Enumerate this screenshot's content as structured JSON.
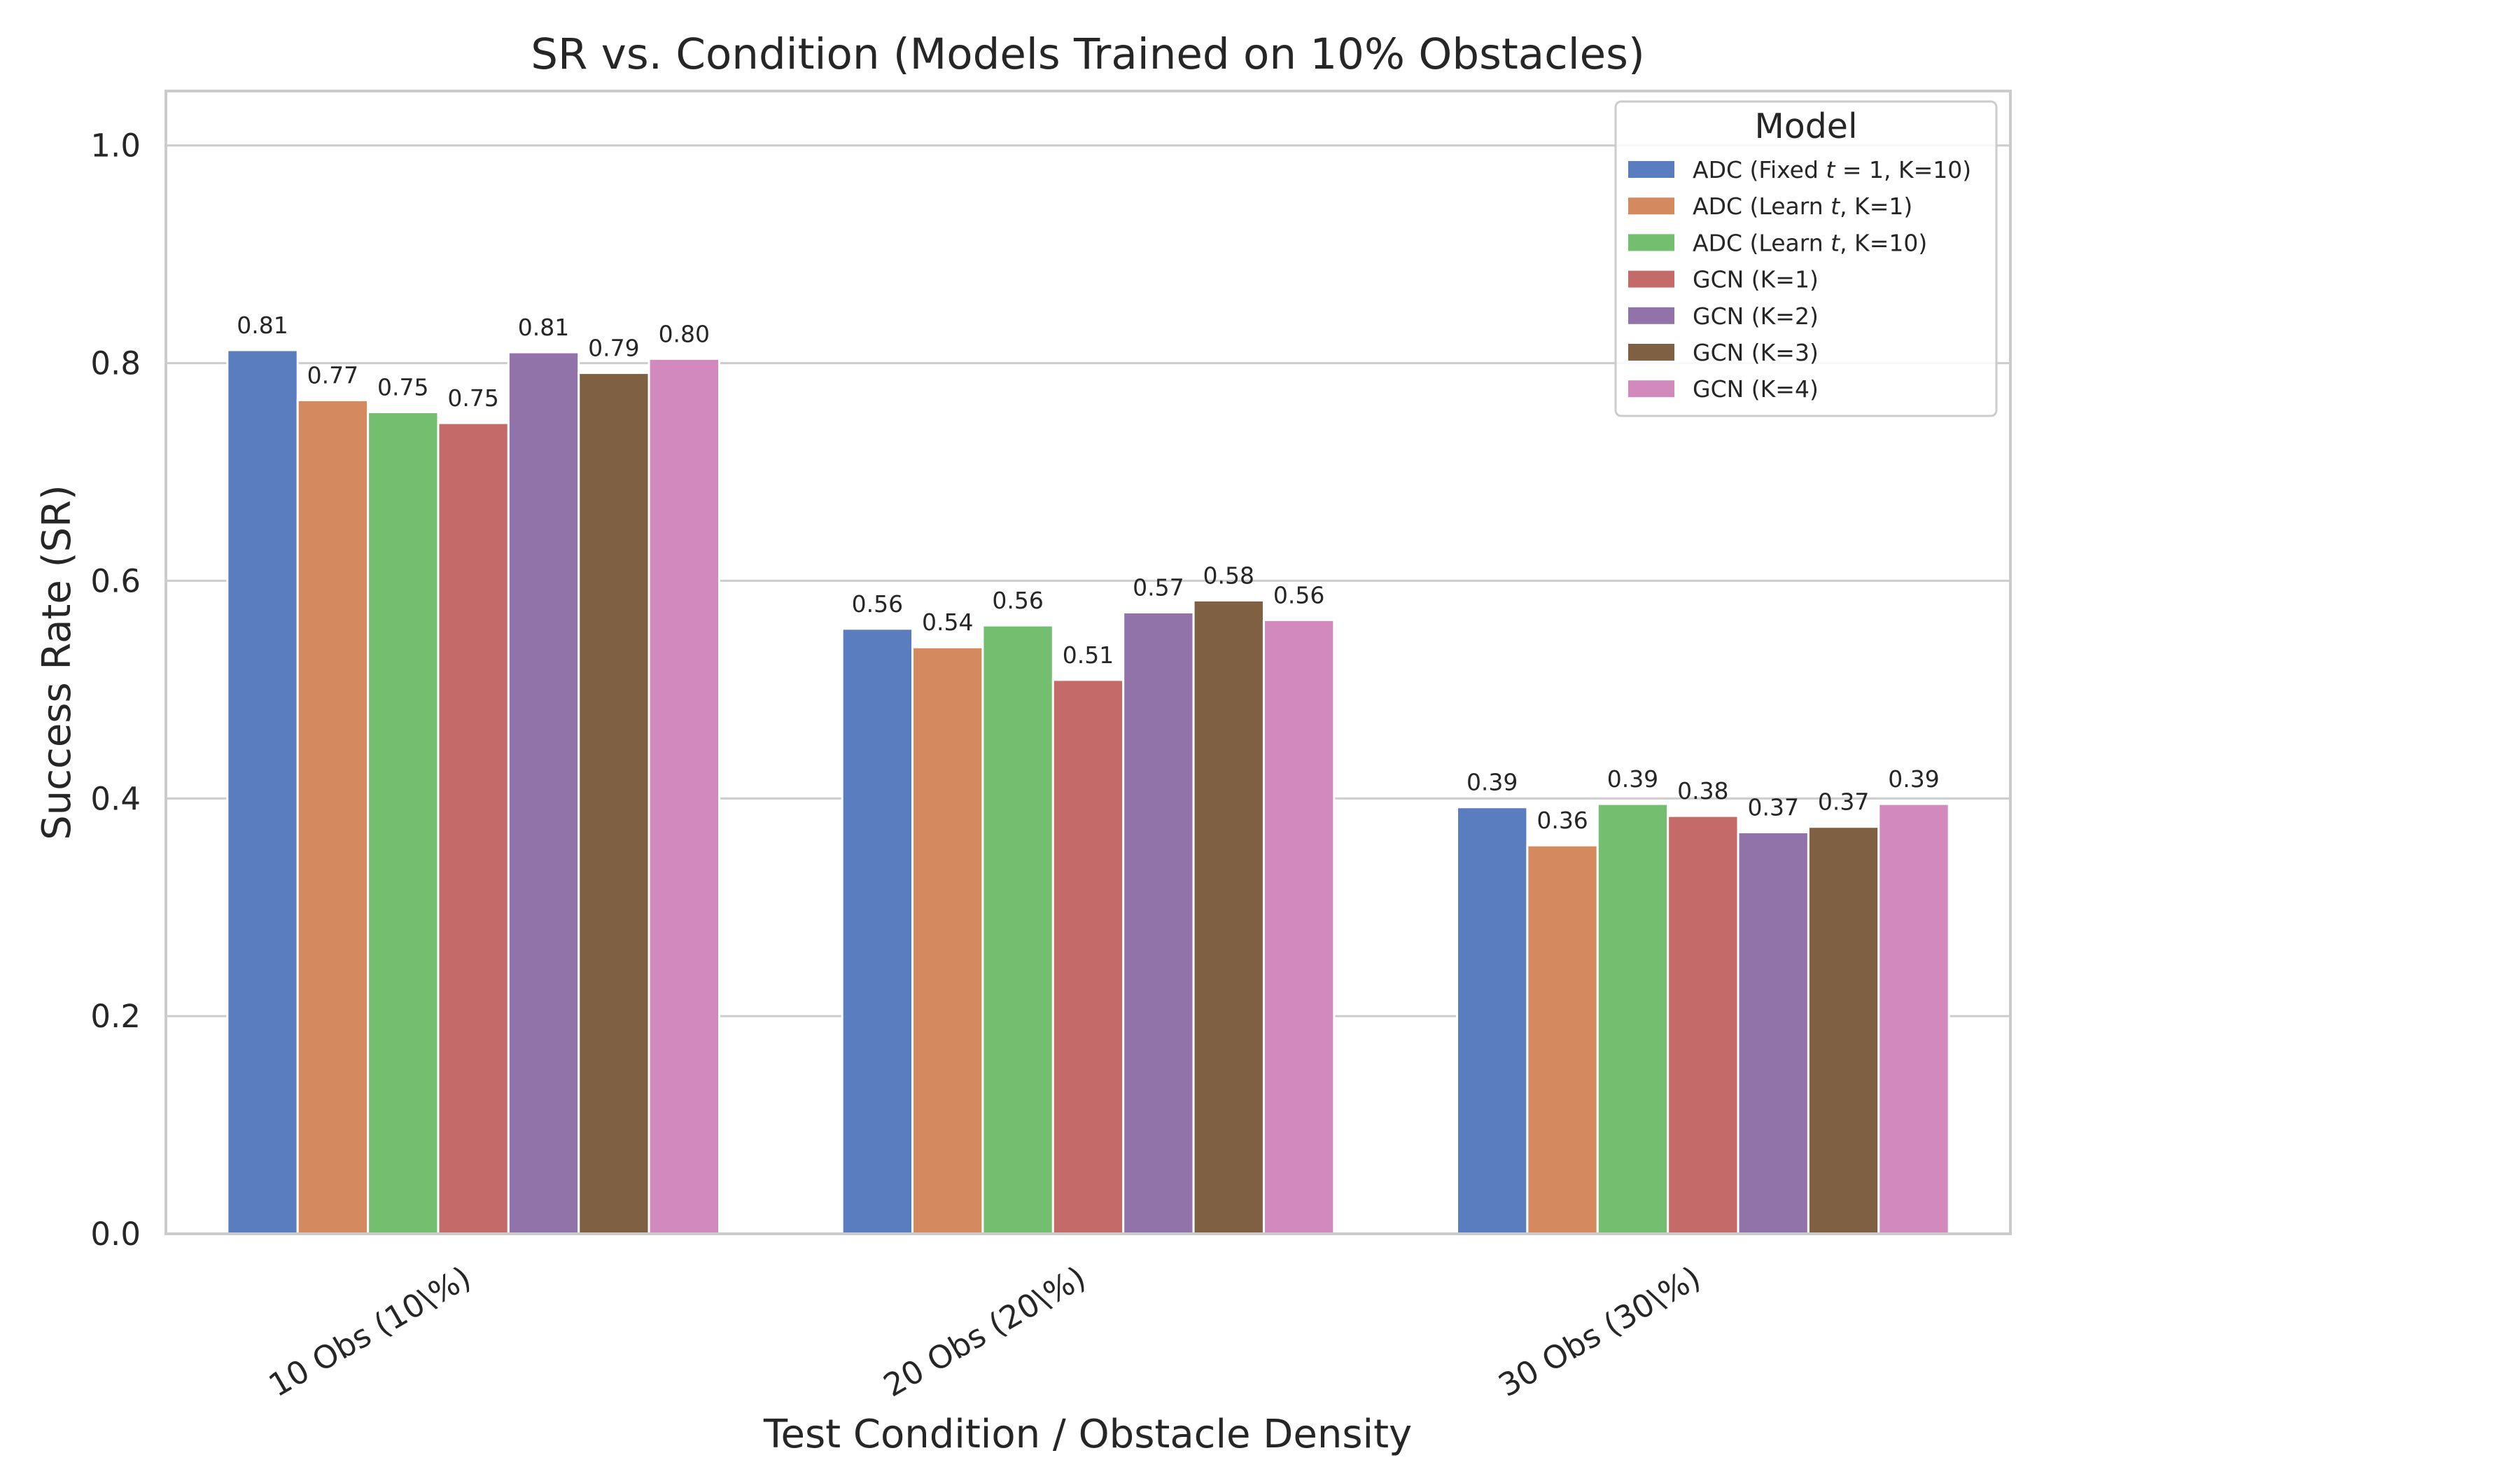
{
  "chart_data": {
    "type": "bar",
    "title": "SR vs. Condition (Models Trained on 10% Obstacles)",
    "xlabel": "Test Condition / Obstacle Density",
    "ylabel": "Success Rate (SR)",
    "ylim": [
      0,
      1.05
    ],
    "yticks": [
      "0.0",
      "0.2",
      "0.4",
      "0.6",
      "0.8",
      "1.0"
    ],
    "grid": "horizontal",
    "legend": {
      "title": "Model",
      "placement": "top-right"
    },
    "categories": [
      "10 Obs (10\\%)",
      "20 Obs (20\\%)",
      "30 Obs (30\\%)"
    ],
    "series": [
      {
        "name": "ADC (Fixed t = 1, K=10)",
        "legend_parts": [
          "ADC (Fixed ",
          "t",
          " = 1, K=10)"
        ],
        "color": "#5a7dbf",
        "values": [
          0.812,
          0.556,
          0.392
        ],
        "labels": [
          "0.81",
          "0.56",
          "0.39"
        ]
      },
      {
        "name": "ADC (Learn t, K=1)",
        "legend_parts": [
          "ADC (Learn ",
          "t",
          ", K=1)"
        ],
        "color": "#d5895e",
        "values": [
          0.766,
          0.539,
          0.357
        ],
        "labels": [
          "0.77",
          "0.54",
          "0.36"
        ]
      },
      {
        "name": "ADC (Learn t, K=10)",
        "legend_parts": [
          "ADC (Learn ",
          "t",
          ", K=10)"
        ],
        "color": "#74bf6f",
        "values": [
          0.755,
          0.559,
          0.395
        ],
        "labels": [
          "0.75",
          "0.56",
          "0.39"
        ]
      },
      {
        "name": "GCN (K=1)",
        "legend_parts": [
          "GCN (K=1)",
          "",
          ""
        ],
        "color": "#c46b6a",
        "values": [
          0.745,
          0.509,
          0.384
        ],
        "labels": [
          "0.75",
          "0.51",
          "0.38"
        ]
      },
      {
        "name": "GCN (K=2)",
        "legend_parts": [
          "GCN (K=2)",
          "",
          ""
        ],
        "color": "#9173aa",
        "values": [
          0.81,
          0.571,
          0.369
        ],
        "labels": [
          "0.81",
          "0.57",
          "0.37"
        ]
      },
      {
        "name": "GCN (K=3)",
        "legend_parts": [
          "GCN (K=3)",
          "",
          ""
        ],
        "color": "#7f6043",
        "values": [
          0.791,
          0.582,
          0.374
        ],
        "labels": [
          "0.79",
          "0.58",
          "0.37"
        ]
      },
      {
        "name": "GCN (K=4)",
        "legend_parts": [
          "GCN (K=4)",
          "",
          ""
        ],
        "color": "#d289be",
        "values": [
          0.804,
          0.564,
          0.395
        ],
        "labels": [
          "0.80",
          "0.56",
          "0.39"
        ]
      }
    ]
  }
}
